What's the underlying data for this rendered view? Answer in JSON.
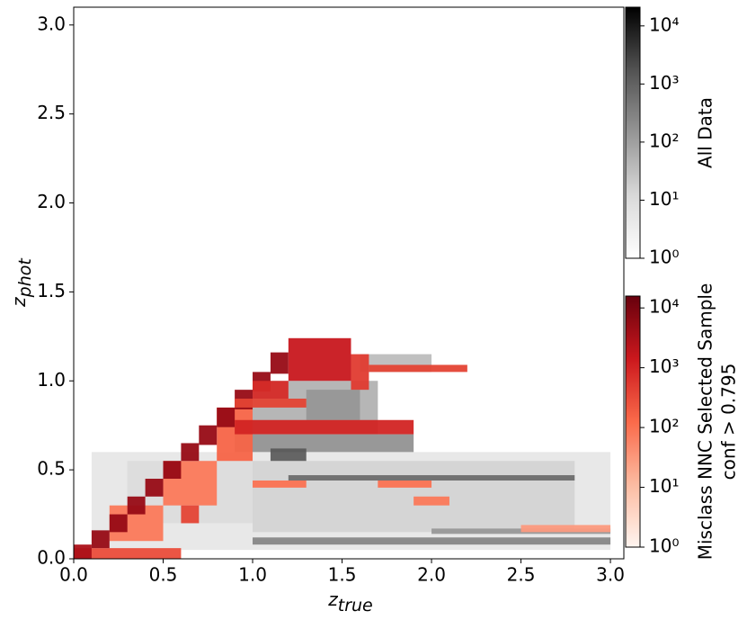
{
  "chart_data": {
    "type": "heatmap2d",
    "xlabel": "z",
    "xlabel_sub": "true",
    "ylabel": "z",
    "ylabel_sub": "phot",
    "xlim": [
      0,
      3.075
    ],
    "ylim": [
      0,
      3.1
    ],
    "xticks": [
      {
        "value": 0,
        "label": "0.0"
      },
      0.5,
      {
        "value": 1,
        "label": "1.0"
      },
      1.5,
      {
        "value": 2,
        "label": "2.0"
      },
      2.5,
      {
        "value": 3,
        "label": "3.0"
      }
    ],
    "yticks": [
      {
        "value": 0,
        "label": "0.0"
      },
      0.5,
      {
        "value": 1,
        "label": "1.0"
      },
      1.5,
      {
        "value": 2,
        "label": "2.0"
      },
      2.5,
      {
        "value": 3,
        "label": "3.0"
      }
    ],
    "layers": [
      {
        "name": [
          "All Data"
        ],
        "colormap": "Greys",
        "clim": [
          1,
          21000
        ],
        "cticks": [
          {
            "value": 1,
            "label": "10⁰"
          },
          {
            "value": 10,
            "label": "10¹"
          },
          {
            "value": 100,
            "label": "10²"
          },
          {
            "value": 1000,
            "label": "10³"
          },
          {
            "value": 10000,
            "label": "10⁴"
          }
        ],
        "cells": [
          [
            0.1,
            3.0,
            0.05,
            0.6,
            5
          ],
          [
            0.3,
            1.0,
            0.2,
            0.55,
            10
          ],
          [
            1.0,
            2.8,
            0.15,
            0.55,
            15
          ],
          [
            1.0,
            3.0,
            0.08,
            0.12,
            300
          ],
          [
            2.0,
            3.0,
            0.14,
            0.17,
            150
          ],
          [
            1.2,
            2.8,
            0.44,
            0.47,
            800
          ],
          [
            0.9,
            1.9,
            0.6,
            0.7,
            200
          ],
          [
            1.1,
            1.3,
            0.55,
            0.62,
            1500
          ],
          [
            1.0,
            1.7,
            0.7,
            1.0,
            60
          ],
          [
            1.3,
            1.6,
            0.78,
            0.95,
            150
          ],
          [
            1.6,
            2.0,
            1.05,
            1.15,
            40
          ]
        ]
      },
      {
        "name": [
          "Misclass NNC Selected Sample",
          "conf > 0.795"
        ],
        "colormap": "Reds",
        "clim": [
          1,
          15800
        ],
        "cticks": [
          {
            "value": 1,
            "label": "10⁰"
          },
          {
            "value": 10,
            "label": "10¹"
          },
          {
            "value": 100,
            "label": "10²"
          },
          {
            "value": 1000,
            "label": "10³"
          },
          {
            "value": 10000,
            "label": "10⁴"
          }
        ],
        "cells": [
          [
            0.0,
            0.6,
            0.0,
            0.06,
            300
          ],
          [
            0.2,
            0.5,
            0.1,
            0.3,
            80
          ],
          [
            0.5,
            0.8,
            0.3,
            0.55,
            80
          ],
          [
            0.8,
            1.0,
            0.55,
            0.85,
            150
          ],
          [
            0.6,
            0.7,
            0.2,
            0.3,
            400
          ],
          [
            0.0,
            0.1,
            0.0,
            0.08,
            3000
          ],
          [
            0.1,
            0.2,
            0.06,
            0.16,
            5000
          ],
          [
            0.2,
            0.3,
            0.15,
            0.25,
            5000
          ],
          [
            0.3,
            0.4,
            0.25,
            0.35,
            5000
          ],
          [
            0.4,
            0.5,
            0.35,
            0.45,
            5000
          ],
          [
            0.5,
            0.6,
            0.45,
            0.55,
            5000
          ],
          [
            0.6,
            0.7,
            0.55,
            0.65,
            5000
          ],
          [
            0.7,
            0.8,
            0.64,
            0.75,
            5000
          ],
          [
            0.8,
            0.9,
            0.74,
            0.85,
            5000
          ],
          [
            0.9,
            1.0,
            0.84,
            0.95,
            5000
          ],
          [
            1.0,
            1.1,
            0.94,
            1.05,
            5000
          ],
          [
            1.1,
            1.2,
            1.04,
            1.16,
            5000
          ],
          [
            1.2,
            1.55,
            1.0,
            1.24,
            1500
          ],
          [
            1.0,
            1.2,
            0.9,
            1.0,
            800
          ],
          [
            1.55,
            1.65,
            0.95,
            1.15,
            500
          ],
          [
            1.65,
            2.2,
            1.05,
            1.09,
            400
          ],
          [
            0.9,
            1.9,
            0.7,
            0.78,
            1000
          ],
          [
            0.9,
            1.3,
            0.85,
            0.9,
            400
          ],
          [
            1.0,
            1.3,
            0.4,
            0.44,
            100
          ],
          [
            1.7,
            2.0,
            0.4,
            0.44,
            100
          ],
          [
            1.9,
            2.1,
            0.3,
            0.35,
            80
          ],
          [
            2.5,
            3.0,
            0.15,
            0.19,
            30
          ]
        ]
      }
    ]
  }
}
